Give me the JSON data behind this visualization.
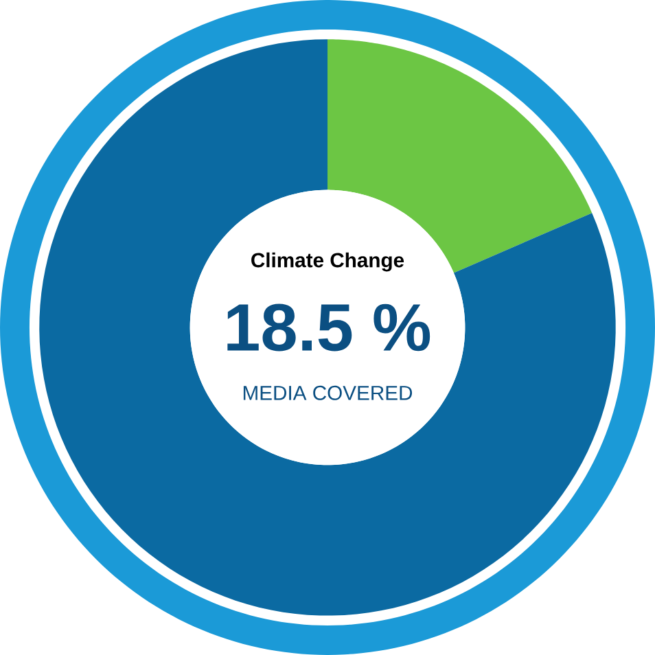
{
  "chart_data": {
    "type": "donut",
    "title": "Climate Change",
    "categories": [
      null,
      null
    ],
    "values": [
      18.5,
      81.5
    ],
    "colors": [
      "#6cc644",
      "#0b6aa2"
    ],
    "annotations": [
      "18.5 %",
      "MEDIA COVERED"
    ]
  }
}
